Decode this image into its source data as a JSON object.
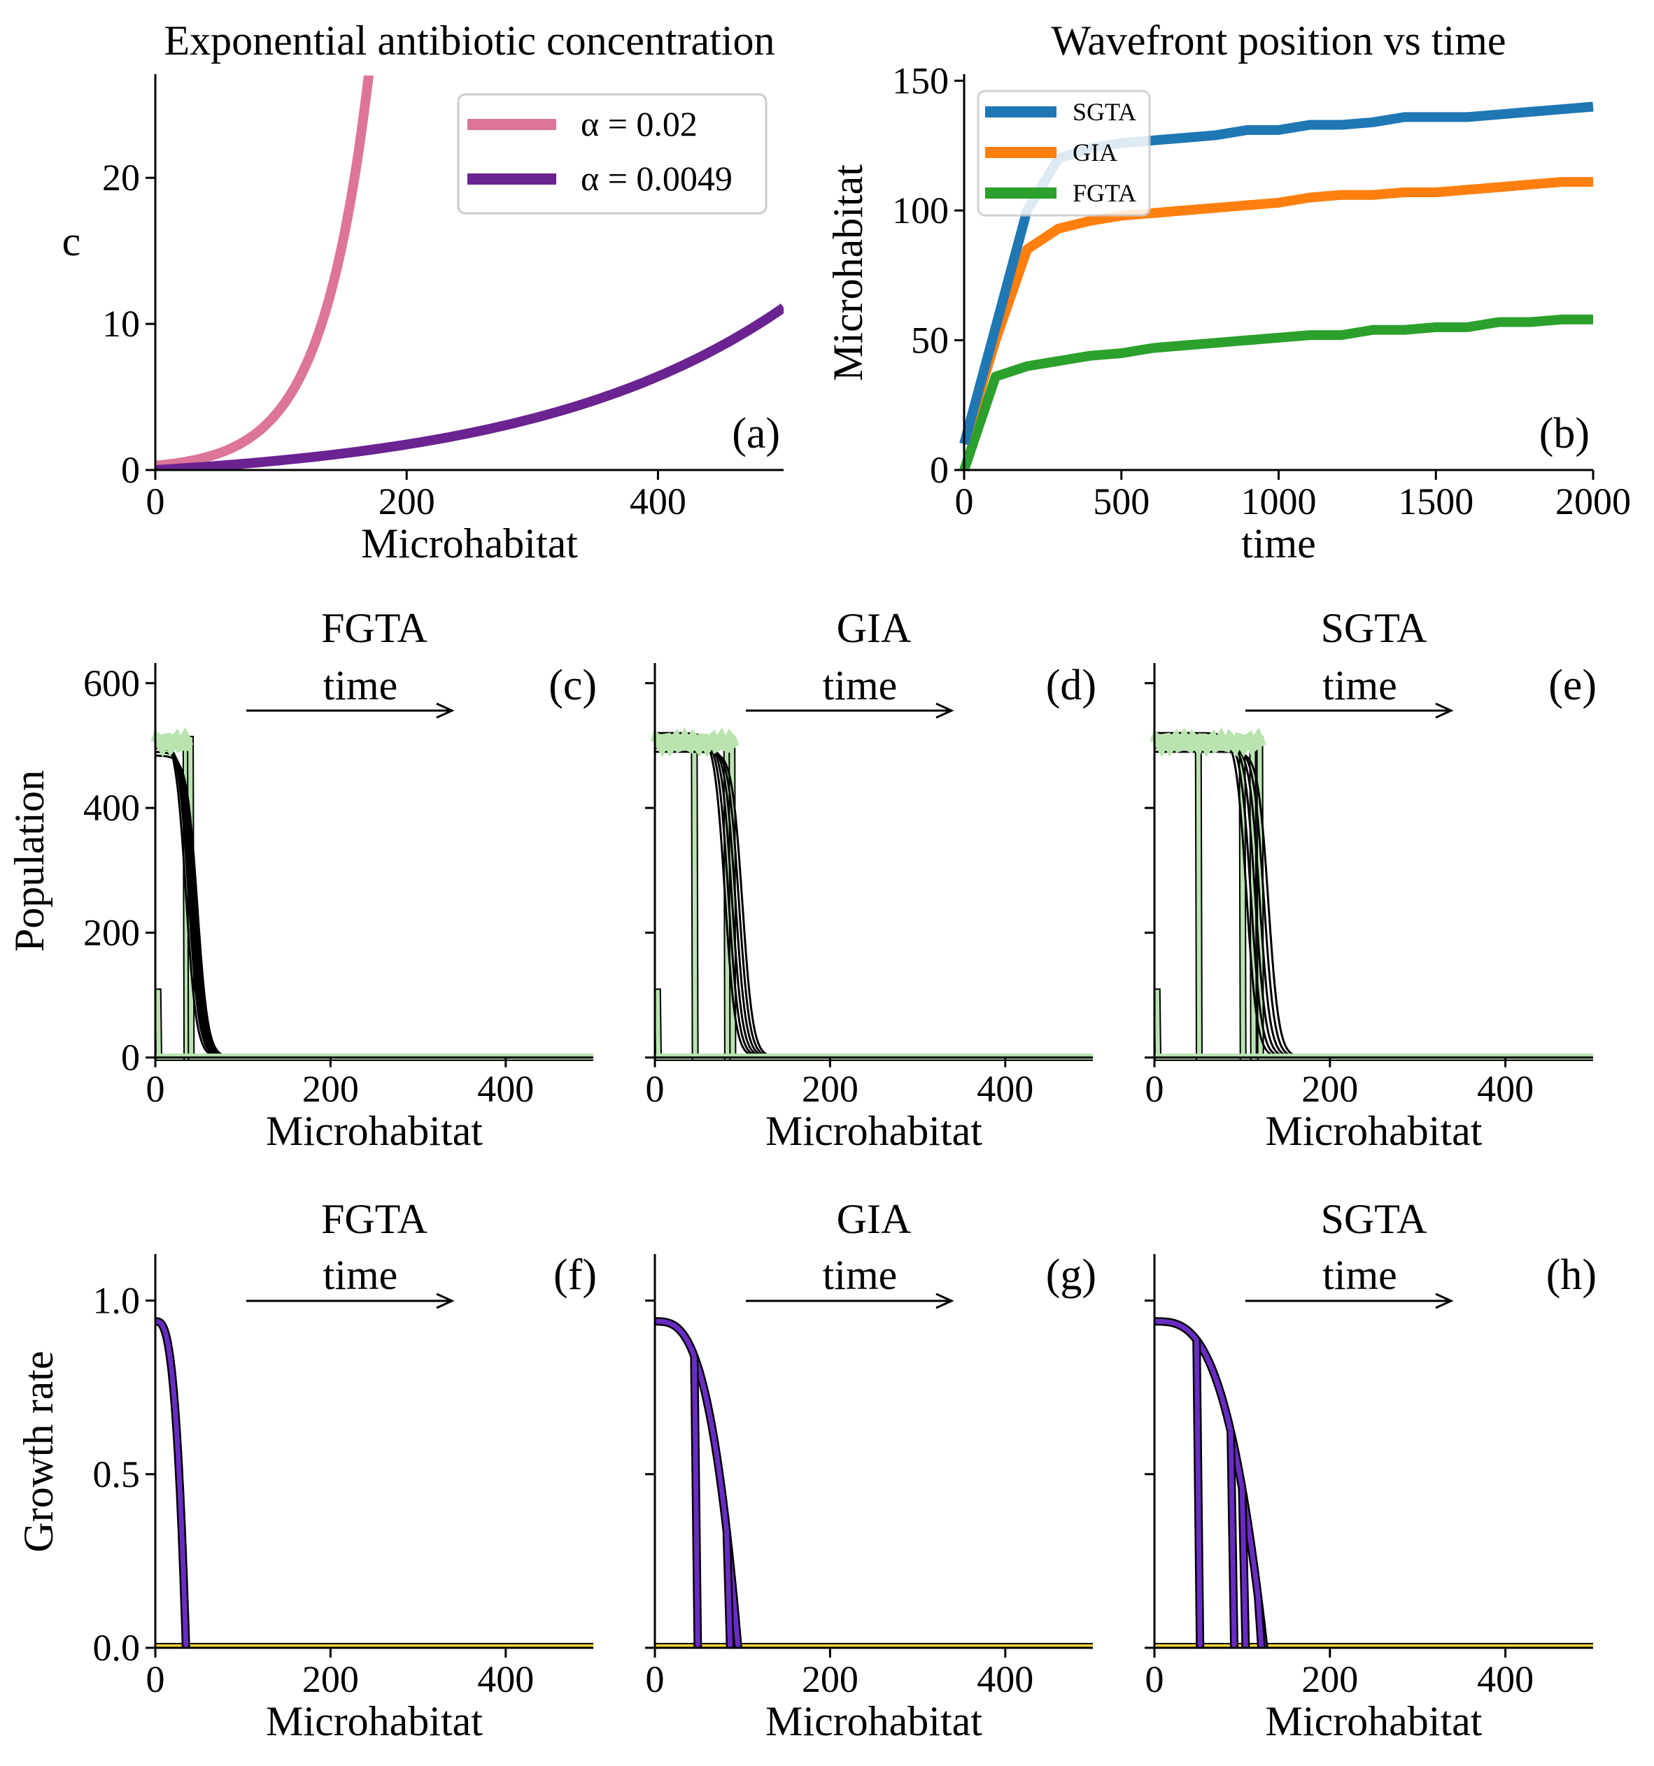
{
  "chart_data": [
    {
      "id": "a",
      "type": "line",
      "title": "Exponential antibiotic concentration",
      "panel_label": "(a)",
      "xlabel": "Microhabitat",
      "ylabel": "c",
      "xlim": [
        0,
        500
      ],
      "ylim": [
        0,
        27
      ],
      "xticks": [
        0,
        200,
        400
      ],
      "xtick_labels": [
        "0",
        "200",
        "400"
      ],
      "yticks": [
        0,
        10,
        20
      ],
      "ytick_labels": [
        "0",
        "10",
        "20"
      ],
      "legend": "top-right",
      "grid": false,
      "series": [
        {
          "name": "α = 0.02",
          "color": "#dc7599",
          "x": [
            0,
            20,
            40,
            60,
            80,
            100,
            120,
            140,
            160,
            166
          ],
          "y": [
            0.3,
            0.45,
            0.67,
            1.0,
            1.5,
            2.2,
            3.3,
            4.9,
            7.4,
            27
          ]
        },
        {
          "name": "α = 0.0049",
          "color": "#6a2390",
          "x": [
            0,
            100,
            200,
            300,
            400,
            500
          ],
          "y": [
            0,
            0.15,
            1.5,
            3.6,
            6.5,
            10.5
          ]
        }
      ]
    },
    {
      "id": "b",
      "type": "line",
      "title": "Wavefront position vs time",
      "panel_label": "(b)",
      "xlabel": "time",
      "ylabel": "Microhabitat",
      "xlim": [
        0,
        2000
      ],
      "ylim": [
        0,
        152
      ],
      "xticks": [
        0,
        500,
        1000,
        1500,
        2000
      ],
      "xtick_labels": [
        "0",
        "500",
        "1000",
        "1500",
        "2000"
      ],
      "yticks": [
        0,
        50,
        100,
        150
      ],
      "ytick_labels": [
        "0",
        "50",
        "100",
        "150"
      ],
      "legend": "top-left",
      "grid": false,
      "series": [
        {
          "name": "SGTA",
          "color": "#1f77b4",
          "x": [
            0,
            100,
            200,
            300,
            400,
            500,
            600,
            700,
            800,
            900,
            1000,
            1100,
            1200,
            1300,
            1400,
            1500,
            1600,
            1700,
            1800,
            1900,
            2000
          ],
          "y": [
            10,
            55,
            100,
            120,
            124,
            126,
            127,
            128,
            129,
            131,
            131,
            133,
            133,
            134,
            136,
            136,
            136,
            137,
            138,
            139,
            140
          ]
        },
        {
          "name": "GIA",
          "color": "#ff7f0e",
          "x": [
            0,
            100,
            200,
            300,
            400,
            500,
            600,
            700,
            800,
            900,
            1000,
            1100,
            1200,
            1300,
            1400,
            1500,
            1600,
            1700,
            1800,
            1900,
            2000
          ],
          "y": [
            10,
            50,
            85,
            93,
            96,
            98,
            99,
            100,
            101,
            102,
            103,
            105,
            106,
            106,
            107,
            107,
            108,
            109,
            110,
            111,
            111
          ]
        },
        {
          "name": "FGTA",
          "color": "#2ca02c",
          "x": [
            0,
            100,
            200,
            300,
            400,
            500,
            600,
            700,
            800,
            900,
            1000,
            1100,
            1200,
            1300,
            1400,
            1500,
            1600,
            1700,
            1800,
            1900,
            2000
          ],
          "y": [
            0,
            36,
            40,
            42,
            44,
            45,
            47,
            48,
            49,
            50,
            51,
            52,
            52,
            54,
            54,
            55,
            55,
            57,
            57,
            58,
            58
          ]
        }
      ]
    },
    {
      "id": "c",
      "type": "line",
      "title": "FGTA",
      "panel_label": "(c)",
      "annotation": "time",
      "xlabel": "Microhabitat",
      "ylabel": "Population",
      "xlim": [
        0,
        500
      ],
      "ylim": [
        0,
        630
      ],
      "xticks": [
        0,
        200,
        400
      ],
      "xtick_labels": [
        "0",
        "200",
        "400"
      ],
      "yticks": [
        0,
        200,
        400,
        600
      ],
      "ytick_labels": [
        "0",
        "200",
        "400",
        "600"
      ],
      "grid": false,
      "fronts": [
        35,
        38,
        40,
        42,
        44,
        46,
        48
      ],
      "snapshots": [
        3,
        35,
        40
      ]
    },
    {
      "id": "d",
      "type": "line",
      "title": "GIA",
      "panel_label": "(d)",
      "annotation": "time",
      "xlabel": "Microhabitat",
      "ylabel": "",
      "xlim": [
        0,
        500
      ],
      "ylim": [
        0,
        630
      ],
      "xticks": [
        0,
        200,
        400
      ],
      "xtick_labels": [
        "0",
        "200",
        "400"
      ],
      "yticks": [
        0,
        200,
        400,
        600
      ],
      "ytick_labels": [],
      "grid": false,
      "fronts": [
        80,
        84,
        88,
        92,
        96,
        100
      ],
      "snapshots": [
        3,
        45,
        82,
        88
      ]
    },
    {
      "id": "e",
      "type": "line",
      "title": "SGTA",
      "panel_label": "(e)",
      "annotation": "time",
      "xlabel": "Microhabitat",
      "ylabel": "",
      "xlim": [
        0,
        500
      ],
      "ylim": [
        0,
        630
      ],
      "xticks": [
        0,
        200,
        400
      ],
      "xtick_labels": [
        "0",
        "200",
        "400"
      ],
      "yticks": [
        0,
        200,
        400,
        600
      ],
      "ytick_labels": [],
      "grid": false,
      "fronts": [
        105,
        110,
        115,
        120,
        125,
        130
      ],
      "snapshots": [
        3,
        50,
        100,
        112,
        120
      ]
    },
    {
      "id": "f",
      "type": "line",
      "title": "FGTA",
      "panel_label": "(f)",
      "annotation": "time",
      "xlabel": "Microhabitat",
      "ylabel": "Growth rate",
      "xlim": [
        0,
        500
      ],
      "ylim": [
        0,
        1.13
      ],
      "xticks": [
        0,
        200,
        400
      ],
      "xtick_labels": [
        "0",
        "200",
        "400"
      ],
      "yticks": [
        0,
        0.5,
        1.0
      ],
      "ytick_labels": [
        "0.0",
        "0.5",
        "1.0"
      ],
      "grid": false,
      "curve_color": "#6a2bc4",
      "baseline_color": "#f5d33a",
      "curves": [
        {
          "end": 35,
          "peak": 0.94
        }
      ]
    },
    {
      "id": "g",
      "type": "line",
      "title": "GIA",
      "panel_label": "(g)",
      "annotation": "time",
      "xlabel": "Microhabitat",
      "ylabel": "",
      "xlim": [
        0,
        500
      ],
      "ylim": [
        0,
        1.13
      ],
      "xticks": [
        0,
        200,
        400
      ],
      "xtick_labels": [
        "0",
        "200",
        "400"
      ],
      "yticks": [
        0,
        0.5,
        1.0
      ],
      "ytick_labels": [],
      "grid": false,
      "curve_color": "#6a2bc4",
      "baseline_color": "#f5d33a",
      "curves": [
        {
          "end": 95,
          "peak": 0.94
        }
      ],
      "drops": [
        45,
        82
      ]
    },
    {
      "id": "h",
      "type": "line",
      "title": "SGTA",
      "panel_label": "(h)",
      "annotation": "time",
      "xlabel": "Microhabitat",
      "ylabel": "",
      "xlim": [
        0,
        500
      ],
      "ylim": [
        0,
        1.13
      ],
      "xticks": [
        0,
        200,
        400
      ],
      "xtick_labels": [
        "0",
        "200",
        "400"
      ],
      "yticks": [
        0,
        0.5,
        1.0
      ],
      "ytick_labels": [],
      "grid": false,
      "curve_color": "#6a2bc4",
      "baseline_color": "#f5d33a",
      "curves": [
        {
          "end": 125,
          "peak": 0.94
        }
      ],
      "drops": [
        48,
        87,
        100,
        118
      ]
    }
  ]
}
